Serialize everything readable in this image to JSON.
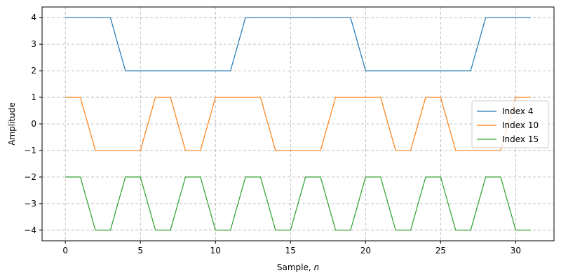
{
  "chart_data": {
    "type": "line",
    "xlabel": "Sample, n",
    "ylabel": "Amplitude",
    "xlim": [
      -1.55,
      32.55
    ],
    "ylim": [
      -4.4,
      4.4
    ],
    "xticks": [
      0,
      5,
      10,
      15,
      20,
      25,
      30
    ],
    "yticks": [
      -4,
      -3,
      -2,
      -1,
      0,
      1,
      2,
      3,
      4
    ],
    "xtick_labels": [
      "0",
      "5",
      "10",
      "15",
      "20",
      "25",
      "30"
    ],
    "ytick_labels": [
      "−4",
      "−3",
      "−2",
      "−1",
      "0",
      "1",
      "2",
      "3",
      "4"
    ],
    "grid": true,
    "legend_position": "center-right",
    "x": [
      0,
      1,
      2,
      3,
      4,
      5,
      6,
      7,
      8,
      9,
      10,
      11,
      12,
      13,
      14,
      15,
      16,
      17,
      18,
      19,
      20,
      21,
      22,
      23,
      24,
      25,
      26,
      27,
      28,
      29,
      30,
      31
    ],
    "series": [
      {
        "name": "Index 4",
        "color": "#1f77b4",
        "values": [
          4,
          4,
          4,
          4,
          2,
          2,
          2,
          2,
          2,
          2,
          2,
          2,
          4,
          4,
          4,
          4,
          4,
          4,
          4,
          4,
          2,
          2,
          2,
          2,
          2,
          2,
          2,
          2,
          4,
          4,
          4,
          4
        ]
      },
      {
        "name": "Index 10",
        "color": "#ff7f0e",
        "values": [
          1,
          1,
          -1,
          -1,
          -1,
          -1,
          1,
          1,
          -1,
          -1,
          1,
          1,
          1,
          1,
          -1,
          -1,
          -1,
          -1,
          1,
          1,
          1,
          1,
          -1,
          -1,
          1,
          1,
          -1,
          -1,
          -1,
          -1,
          1,
          1
        ]
      },
      {
        "name": "Index 15",
        "color": "#2ca02c",
        "values": [
          -2,
          -2,
          -4,
          -4,
          -2,
          -2,
          -4,
          -4,
          -2,
          -2,
          -4,
          -4,
          -2,
          -2,
          -4,
          -4,
          -2,
          -2,
          -4,
          -4,
          -2,
          -2,
          -4,
          -4,
          -2,
          -2,
          -4,
          -4,
          -2,
          -2,
          -4,
          -4
        ]
      }
    ]
  }
}
